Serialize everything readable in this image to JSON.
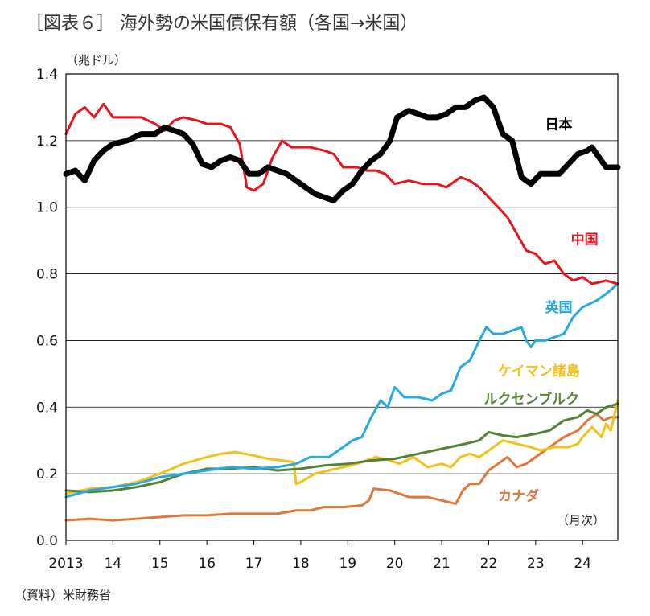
{
  "chart_data": {
    "type": "line",
    "title": "［図表６］ 海外勢の米国債保有額（各国→米国）",
    "y_unit_label": "（兆ドル）",
    "x_unit_label": "（月次）",
    "source_note": "（資料）米財務省",
    "ylim": [
      0.0,
      1.4
    ],
    "xlim": [
      2013.0,
      2024.75
    ],
    "y_ticks": [
      "0.0",
      "0.2",
      "0.4",
      "0.6",
      "0.8",
      "1.0",
      "1.2",
      "1.4"
    ],
    "x_ticks": [
      {
        "label": "2013",
        "x": 2013.0
      },
      {
        "label": "14",
        "x": 2014.0
      },
      {
        "label": "15",
        "x": 2015.0
      },
      {
        "label": "16",
        "x": 2016.0
      },
      {
        "label": "17",
        "x": 2017.0
      },
      {
        "label": "18",
        "x": 2018.0
      },
      {
        "label": "19",
        "x": 2019.0
      },
      {
        "label": "20",
        "x": 2020.0
      },
      {
        "label": "21",
        "x": 2021.0
      },
      {
        "label": "22",
        "x": 2022.0
      },
      {
        "label": "23",
        "x": 2023.0
      },
      {
        "label": "24",
        "x": 2024.0
      }
    ],
    "grid": true,
    "series": [
      {
        "name": "カナダ",
        "color": "#e0773a",
        "width": 3,
        "points": [
          [
            2013.0,
            0.06
          ],
          [
            2013.5,
            0.065
          ],
          [
            2014.0,
            0.06
          ],
          [
            2014.5,
            0.065
          ],
          [
            2015.0,
            0.07
          ],
          [
            2015.5,
            0.075
          ],
          [
            2016.0,
            0.075
          ],
          [
            2016.5,
            0.08
          ],
          [
            2017.0,
            0.08
          ],
          [
            2017.5,
            0.08
          ],
          [
            2017.9,
            0.09
          ],
          [
            2018.2,
            0.09
          ],
          [
            2018.5,
            0.1
          ],
          [
            2018.9,
            0.1
          ],
          [
            2019.3,
            0.105
          ],
          [
            2019.45,
            0.12
          ],
          [
            2019.55,
            0.155
          ],
          [
            2019.9,
            0.15
          ],
          [
            2020.3,
            0.13
          ],
          [
            2020.7,
            0.13
          ],
          [
            2021.0,
            0.12
          ],
          [
            2021.3,
            0.11
          ],
          [
            2021.45,
            0.15
          ],
          [
            2021.6,
            0.17
          ],
          [
            2021.8,
            0.17
          ],
          [
            2022.0,
            0.21
          ],
          [
            2022.2,
            0.23
          ],
          [
            2022.4,
            0.25
          ],
          [
            2022.6,
            0.22
          ],
          [
            2022.8,
            0.23
          ],
          [
            2023.0,
            0.25
          ],
          [
            2023.3,
            0.28
          ],
          [
            2023.6,
            0.31
          ],
          [
            2023.9,
            0.33
          ],
          [
            2024.1,
            0.36
          ],
          [
            2024.3,
            0.38
          ],
          [
            2024.45,
            0.36
          ],
          [
            2024.6,
            0.37
          ],
          [
            2024.75,
            0.37
          ]
        ]
      },
      {
        "name": "ケイマン諸島",
        "color": "#f1c21a",
        "width": 3,
        "points": [
          [
            2013.0,
            0.14
          ],
          [
            2013.5,
            0.155
          ],
          [
            2014.0,
            0.16
          ],
          [
            2014.5,
            0.175
          ],
          [
            2015.0,
            0.2
          ],
          [
            2015.5,
            0.23
          ],
          [
            2016.0,
            0.25
          ],
          [
            2016.3,
            0.26
          ],
          [
            2016.6,
            0.265
          ],
          [
            2017.0,
            0.255
          ],
          [
            2017.3,
            0.245
          ],
          [
            2017.6,
            0.24
          ],
          [
            2017.85,
            0.235
          ],
          [
            2017.9,
            0.17
          ],
          [
            2018.0,
            0.175
          ],
          [
            2018.3,
            0.2
          ],
          [
            2018.6,
            0.21
          ],
          [
            2018.9,
            0.22
          ],
          [
            2019.2,
            0.23
          ],
          [
            2019.6,
            0.25
          ],
          [
            2019.9,
            0.24
          ],
          [
            2020.1,
            0.23
          ],
          [
            2020.4,
            0.25
          ],
          [
            2020.7,
            0.22
          ],
          [
            2021.0,
            0.23
          ],
          [
            2021.2,
            0.22
          ],
          [
            2021.4,
            0.25
          ],
          [
            2021.6,
            0.26
          ],
          [
            2021.8,
            0.25
          ],
          [
            2022.0,
            0.27
          ],
          [
            2022.3,
            0.3
          ],
          [
            2022.6,
            0.29
          ],
          [
            2022.9,
            0.28
          ],
          [
            2023.1,
            0.27
          ],
          [
            2023.4,
            0.28
          ],
          [
            2023.7,
            0.28
          ],
          [
            2023.9,
            0.29
          ],
          [
            2024.0,
            0.31
          ],
          [
            2024.2,
            0.34
          ],
          [
            2024.4,
            0.31
          ],
          [
            2024.5,
            0.35
          ],
          [
            2024.6,
            0.33
          ],
          [
            2024.75,
            0.42
          ]
        ]
      },
      {
        "name": "ルクセンブルク",
        "color": "#548235",
        "width": 3,
        "points": [
          [
            2013.0,
            0.15
          ],
          [
            2013.5,
            0.145
          ],
          [
            2014.0,
            0.15
          ],
          [
            2014.5,
            0.16
          ],
          [
            2015.0,
            0.175
          ],
          [
            2015.5,
            0.2
          ],
          [
            2016.0,
            0.215
          ],
          [
            2016.5,
            0.215
          ],
          [
            2017.0,
            0.22
          ],
          [
            2017.5,
            0.21
          ],
          [
            2018.0,
            0.215
          ],
          [
            2018.5,
            0.225
          ],
          [
            2019.0,
            0.23
          ],
          [
            2019.5,
            0.24
          ],
          [
            2020.0,
            0.245
          ],
          [
            2020.5,
            0.26
          ],
          [
            2021.0,
            0.275
          ],
          [
            2021.5,
            0.29
          ],
          [
            2021.8,
            0.3
          ],
          [
            2022.0,
            0.325
          ],
          [
            2022.3,
            0.315
          ],
          [
            2022.6,
            0.31
          ],
          [
            2023.0,
            0.32
          ],
          [
            2023.3,
            0.33
          ],
          [
            2023.6,
            0.36
          ],
          [
            2023.9,
            0.37
          ],
          [
            2024.1,
            0.39
          ],
          [
            2024.3,
            0.38
          ],
          [
            2024.5,
            0.4
          ],
          [
            2024.75,
            0.41
          ]
        ]
      },
      {
        "name": "英国",
        "color": "#27a9e1",
        "width": 3,
        "points": [
          [
            2013.0,
            0.13
          ],
          [
            2013.5,
            0.15
          ],
          [
            2014.0,
            0.16
          ],
          [
            2014.5,
            0.17
          ],
          [
            2015.0,
            0.19
          ],
          [
            2015.5,
            0.2
          ],
          [
            2016.0,
            0.21
          ],
          [
            2016.5,
            0.22
          ],
          [
            2017.0,
            0.215
          ],
          [
            2017.5,
            0.22
          ],
          [
            2017.9,
            0.23
          ],
          [
            2018.2,
            0.25
          ],
          [
            2018.6,
            0.25
          ],
          [
            2018.9,
            0.28
          ],
          [
            2019.1,
            0.3
          ],
          [
            2019.3,
            0.31
          ],
          [
            2019.5,
            0.37
          ],
          [
            2019.7,
            0.42
          ],
          [
            2019.85,
            0.4
          ],
          [
            2020.0,
            0.46
          ],
          [
            2020.2,
            0.43
          ],
          [
            2020.5,
            0.43
          ],
          [
            2020.8,
            0.42
          ],
          [
            2021.0,
            0.44
          ],
          [
            2021.2,
            0.45
          ],
          [
            2021.4,
            0.52
          ],
          [
            2021.6,
            0.54
          ],
          [
            2021.8,
            0.6
          ],
          [
            2021.95,
            0.64
          ],
          [
            2022.1,
            0.62
          ],
          [
            2022.3,
            0.62
          ],
          [
            2022.5,
            0.63
          ],
          [
            2022.7,
            0.64
          ],
          [
            2022.8,
            0.6
          ],
          [
            2022.9,
            0.58
          ],
          [
            2023.0,
            0.6
          ],
          [
            2023.2,
            0.6
          ],
          [
            2023.4,
            0.61
          ],
          [
            2023.6,
            0.62
          ],
          [
            2023.8,
            0.67
          ],
          [
            2024.0,
            0.7
          ],
          [
            2024.3,
            0.72
          ],
          [
            2024.5,
            0.74
          ],
          [
            2024.75,
            0.77
          ]
        ]
      },
      {
        "name": "中国",
        "color": "#e8141b",
        "width": 3,
        "points": [
          [
            2013.0,
            1.22
          ],
          [
            2013.2,
            1.28
          ],
          [
            2013.4,
            1.3
          ],
          [
            2013.6,
            1.27
          ],
          [
            2013.8,
            1.31
          ],
          [
            2014.0,
            1.27
          ],
          [
            2014.3,
            1.27
          ],
          [
            2014.6,
            1.27
          ],
          [
            2014.9,
            1.25
          ],
          [
            2015.1,
            1.23
          ],
          [
            2015.3,
            1.26
          ],
          [
            2015.5,
            1.27
          ],
          [
            2015.8,
            1.26
          ],
          [
            2016.0,
            1.25
          ],
          [
            2016.3,
            1.25
          ],
          [
            2016.5,
            1.24
          ],
          [
            2016.7,
            1.19
          ],
          [
            2016.85,
            1.06
          ],
          [
            2017.0,
            1.05
          ],
          [
            2017.2,
            1.07
          ],
          [
            2017.4,
            1.15
          ],
          [
            2017.6,
            1.2
          ],
          [
            2017.8,
            1.18
          ],
          [
            2018.0,
            1.18
          ],
          [
            2018.2,
            1.18
          ],
          [
            2018.5,
            1.17
          ],
          [
            2018.7,
            1.16
          ],
          [
            2018.9,
            1.12
          ],
          [
            2019.2,
            1.12
          ],
          [
            2019.4,
            1.11
          ],
          [
            2019.6,
            1.11
          ],
          [
            2019.8,
            1.1
          ],
          [
            2020.0,
            1.07
          ],
          [
            2020.3,
            1.08
          ],
          [
            2020.6,
            1.07
          ],
          [
            2020.9,
            1.07
          ],
          [
            2021.1,
            1.06
          ],
          [
            2021.4,
            1.09
          ],
          [
            2021.6,
            1.08
          ],
          [
            2021.8,
            1.06
          ],
          [
            2022.0,
            1.03
          ],
          [
            2022.2,
            1.0
          ],
          [
            2022.4,
            0.97
          ],
          [
            2022.6,
            0.92
          ],
          [
            2022.8,
            0.87
          ],
          [
            2023.0,
            0.86
          ],
          [
            2023.2,
            0.83
          ],
          [
            2023.4,
            0.84
          ],
          [
            2023.6,
            0.8
          ],
          [
            2023.8,
            0.78
          ],
          [
            2024.0,
            0.79
          ],
          [
            2024.2,
            0.77
          ],
          [
            2024.5,
            0.78
          ],
          [
            2024.75,
            0.77
          ]
        ]
      },
      {
        "name": "日本",
        "color": "#000000",
        "width": 7,
        "points": [
          [
            2013.0,
            1.1
          ],
          [
            2013.2,
            1.11
          ],
          [
            2013.4,
            1.08
          ],
          [
            2013.6,
            1.14
          ],
          [
            2013.8,
            1.17
          ],
          [
            2014.0,
            1.19
          ],
          [
            2014.3,
            1.2
          ],
          [
            2014.6,
            1.22
          ],
          [
            2014.9,
            1.22
          ],
          [
            2015.1,
            1.24
          ],
          [
            2015.3,
            1.23
          ],
          [
            2015.5,
            1.22
          ],
          [
            2015.7,
            1.19
          ],
          [
            2015.9,
            1.13
          ],
          [
            2016.1,
            1.12
          ],
          [
            2016.3,
            1.14
          ],
          [
            2016.5,
            1.15
          ],
          [
            2016.7,
            1.14
          ],
          [
            2016.9,
            1.1
          ],
          [
            2017.1,
            1.1
          ],
          [
            2017.3,
            1.12
          ],
          [
            2017.5,
            1.11
          ],
          [
            2017.7,
            1.1
          ],
          [
            2017.9,
            1.08
          ],
          [
            2018.1,
            1.06
          ],
          [
            2018.3,
            1.04
          ],
          [
            2018.5,
            1.03
          ],
          [
            2018.7,
            1.02
          ],
          [
            2018.9,
            1.05
          ],
          [
            2019.1,
            1.07
          ],
          [
            2019.3,
            1.11
          ],
          [
            2019.5,
            1.14
          ],
          [
            2019.7,
            1.16
          ],
          [
            2019.9,
            1.2
          ],
          [
            2020.05,
            1.27
          ],
          [
            2020.3,
            1.29
          ],
          [
            2020.5,
            1.28
          ],
          [
            2020.7,
            1.27
          ],
          [
            2020.9,
            1.27
          ],
          [
            2021.1,
            1.28
          ],
          [
            2021.3,
            1.3
          ],
          [
            2021.5,
            1.3
          ],
          [
            2021.7,
            1.32
          ],
          [
            2021.9,
            1.33
          ],
          [
            2022.1,
            1.3
          ],
          [
            2022.3,
            1.22
          ],
          [
            2022.5,
            1.2
          ],
          [
            2022.7,
            1.09
          ],
          [
            2022.9,
            1.07
          ],
          [
            2023.1,
            1.1
          ],
          [
            2023.3,
            1.1
          ],
          [
            2023.5,
            1.1
          ],
          [
            2023.7,
            1.13
          ],
          [
            2023.9,
            1.16
          ],
          [
            2024.1,
            1.17
          ],
          [
            2024.2,
            1.18
          ],
          [
            2024.35,
            1.15
          ],
          [
            2024.5,
            1.12
          ],
          [
            2024.75,
            1.12
          ]
        ]
      }
    ],
    "series_labels": [
      {
        "text": "日本",
        "color": "#000000",
        "x": 2023.2,
        "y": 1.235
      },
      {
        "text": "中国",
        "color": "#e8141b",
        "x": 2023.75,
        "y": 0.89
      },
      {
        "text": "英国",
        "color": "#27a9e1",
        "x": 2023.2,
        "y": 0.685
      },
      {
        "text": "ケイマン諸島",
        "color": "#f1c21a",
        "x": 2022.2,
        "y": 0.495
      },
      {
        "text": "ルクセンブルク",
        "color": "#548235",
        "x": 2021.9,
        "y": 0.41
      },
      {
        "text": "カナダ",
        "color": "#e0773a",
        "x": 2022.2,
        "y": 0.12
      }
    ]
  }
}
